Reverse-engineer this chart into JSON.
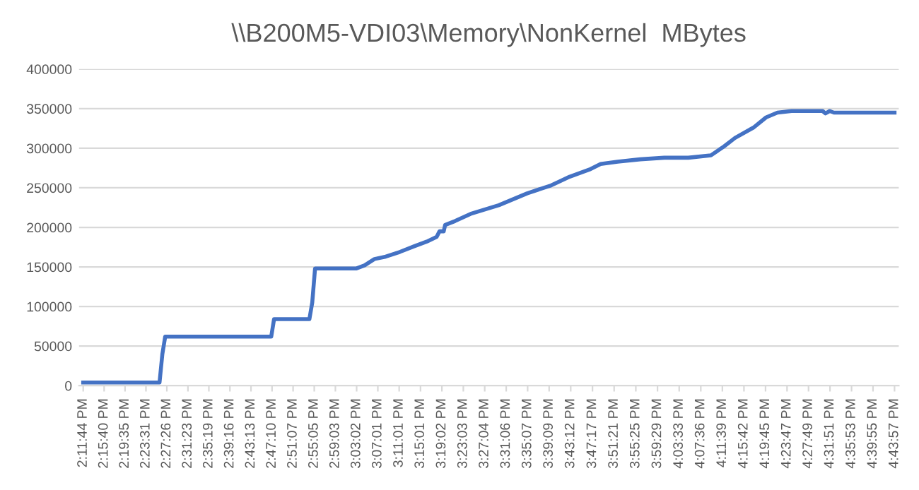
{
  "chart_data": {
    "type": "line",
    "title": "\\\\B200M5-VDI03\\Memory\\NonKernel  MBytes",
    "series": [
      {
        "color": "#4472c4",
        "x": [
          14.1956,
          14.4343,
          14.4432,
          14.452,
          14.7836,
          14.7924,
          14.9029,
          14.9118,
          14.9206,
          15.0488,
          15.0753,
          15.1063,
          15.1417,
          15.1859,
          15.2301,
          15.2699,
          15.3008,
          15.3097,
          15.3229,
          15.3273,
          15.3583,
          15.4069,
          15.4953,
          15.5838,
          15.6589,
          15.7164,
          15.7783,
          15.8136,
          15.8667,
          15.9374,
          16.0126,
          16.0877,
          16.1585,
          16.1983,
          16.2336,
          16.2911,
          16.3309,
          16.3663,
          16.4105,
          16.5077,
          16.5166,
          16.5298,
          16.5431,
          16.7325
        ],
        "values": [
          4000,
          4000,
          40000,
          62000,
          62000,
          84000,
          84000,
          105000,
          148000,
          148000,
          152000,
          160000,
          163000,
          169000,
          176000,
          182000,
          188000,
          195000,
          195000,
          203000,
          208000,
          217000,
          228000,
          243000,
          253000,
          264000,
          273000,
          280000,
          283000,
          286000,
          288000,
          288000,
          291000,
          302000,
          313000,
          326000,
          339000,
          345000,
          347000,
          347000,
          344000,
          347000,
          345000,
          345000
        ]
      }
    ],
    "xlim": [
      14.1826,
      16.7458
    ],
    "xticks": [
      {
        "value": 14.1956,
        "label": "2:11:44 PM"
      },
      {
        "value": 14.2611,
        "label": "2:15:40 PM"
      },
      {
        "value": 14.3264,
        "label": "2:19:35 PM"
      },
      {
        "value": 14.3919,
        "label": "2:23:31 PM"
      },
      {
        "value": 14.4572,
        "label": "2:27:26 PM"
      },
      {
        "value": 14.5231,
        "label": "2:31:23 PM"
      },
      {
        "value": 14.5886,
        "label": "2:35:19 PM"
      },
      {
        "value": 14.6544,
        "label": "2:39:16 PM"
      },
      {
        "value": 14.7203,
        "label": "2:43:13 PM"
      },
      {
        "value": 14.7861,
        "label": "2:47:10 PM"
      },
      {
        "value": 14.8519,
        "label": "2:51:07 PM"
      },
      {
        "value": 14.9181,
        "label": "2:55:05 PM"
      },
      {
        "value": 14.9842,
        "label": "2:59:03 PM"
      },
      {
        "value": 15.0506,
        "label": "3:03:02 PM"
      },
      {
        "value": 15.1169,
        "label": "3:07:01 PM"
      },
      {
        "value": 15.1836,
        "label": "3:11:01 PM"
      },
      {
        "value": 15.2503,
        "label": "3:15:01 PM"
      },
      {
        "value": 15.3172,
        "label": "3:19:02 PM"
      },
      {
        "value": 15.3842,
        "label": "3:23:03 PM"
      },
      {
        "value": 15.4511,
        "label": "3:27:04 PM"
      },
      {
        "value": 15.5183,
        "label": "3:31:06 PM"
      },
      {
        "value": 15.5853,
        "label": "3:35:07 PM"
      },
      {
        "value": 15.6525,
        "label": "3:39:09 PM"
      },
      {
        "value": 15.72,
        "label": "3:43:12 PM"
      },
      {
        "value": 15.7881,
        "label": "3:47:17 PM"
      },
      {
        "value": 15.8558,
        "label": "3:51:21 PM"
      },
      {
        "value": 15.9236,
        "label": "3:55:25 PM"
      },
      {
        "value": 15.9914,
        "label": "3:59:29 PM"
      },
      {
        "value": 16.0592,
        "label": "4:03:33 PM"
      },
      {
        "value": 16.1267,
        "label": "4:07:36 PM"
      },
      {
        "value": 16.1942,
        "label": "4:11:39 PM"
      },
      {
        "value": 16.2617,
        "label": "4:15:42 PM"
      },
      {
        "value": 16.3292,
        "label": "4:19:45 PM"
      },
      {
        "value": 16.3964,
        "label": "4:23:47 PM"
      },
      {
        "value": 16.4636,
        "label": "4:27:49 PM"
      },
      {
        "value": 16.5308,
        "label": "4:31:51 PM"
      },
      {
        "value": 16.5981,
        "label": "4:35:53 PM"
      },
      {
        "value": 16.6653,
        "label": "4:39:55 PM"
      },
      {
        "value": 16.7325,
        "label": "4:43:57 PM"
      }
    ],
    "ylim": [
      0,
      400000
    ],
    "yticks": [
      0,
      50000,
      100000,
      150000,
      200000,
      250000,
      300000,
      350000,
      400000
    ],
    "grid": "y",
    "marker": "none",
    "line_style": "solid"
  }
}
